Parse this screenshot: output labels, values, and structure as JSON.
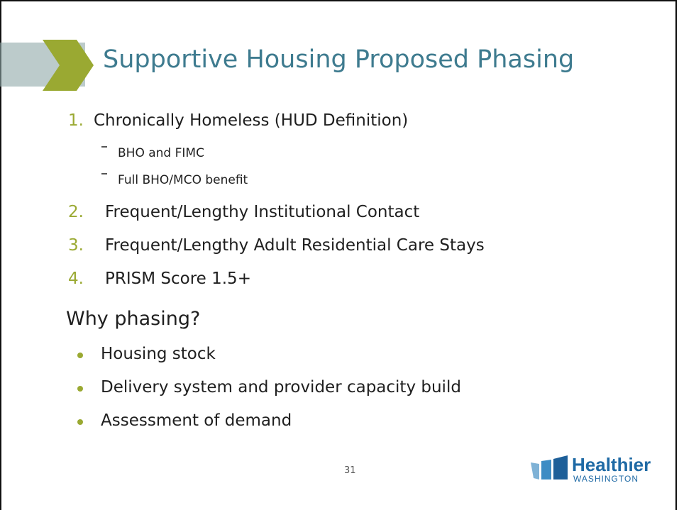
{
  "slide": {
    "title": "Supportive Housing Proposed Phasing",
    "phases": [
      {
        "number": "1.",
        "text": "Chronically Homeless (HUD Definition)",
        "subitems": [
          "BHO and FIMC",
          "Full BHO/MCO benefit"
        ]
      },
      {
        "number": "2.",
        "text": "Frequent/Lengthy Institutional Contact"
      },
      {
        "number": "3.",
        "text": "Frequent/Lengthy Adult Residential Care Stays"
      },
      {
        "number": "4.",
        "text": "PRISM Score 1.5+"
      }
    ],
    "heading": "Why phasing?",
    "reasons": [
      "Housing stock",
      "Delivery system and provider capacity build",
      "Assessment of demand"
    ],
    "page_number": "31",
    "logo": {
      "name": "Healthier",
      "subtitle": "WASHINGTON"
    }
  }
}
